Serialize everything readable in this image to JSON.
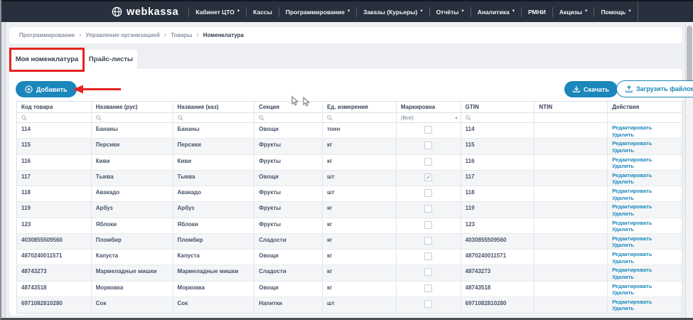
{
  "navbar": {
    "brand": "webkassa",
    "items": [
      {
        "label": "Кабинет ЦТО",
        "dropdown": true
      },
      {
        "label": "Кассы",
        "dropdown": false
      },
      {
        "label": "Программирование",
        "dropdown": true
      },
      {
        "label": "Заказы (Курьеры)",
        "dropdown": true
      },
      {
        "label": "Отчёты",
        "dropdown": true
      },
      {
        "label": "Аналитика",
        "dropdown": true
      },
      {
        "label": "РМНИ",
        "dropdown": false
      },
      {
        "label": "Акцизы",
        "dropdown": true
      },
      {
        "label": "Помощь",
        "dropdown": true
      }
    ]
  },
  "breadcrumb": {
    "items": [
      "Программирование",
      "Управление организацией",
      "Товары",
      "Номенклатура"
    ]
  },
  "tabs": [
    {
      "label": "Моя номенклатура",
      "active": true
    },
    {
      "label": "Прайс-листы",
      "active": false
    }
  ],
  "toolbar": {
    "add_label": "Добавить",
    "download_label": "Скачать",
    "upload_label": "Загрузить файлом"
  },
  "table": {
    "headers": [
      "Код товара",
      "Название (рус)",
      "Название (каз)",
      "Секция",
      "Ед. измерения",
      "Маркировка",
      "GTIN",
      "NTIN",
      "Действия"
    ],
    "filters": {
      "marking_selected": "(Все)"
    },
    "action_labels": {
      "edit": "Редактировать",
      "delete": "Удалить"
    },
    "rows": [
      {
        "code": "114",
        "name_ru": "Бананы",
        "name_kz": "Бананы",
        "section": "Овощи",
        "unit": "тонн",
        "marked": false,
        "gtin": "114",
        "ntin": ""
      },
      {
        "code": "115",
        "name_ru": "Персики",
        "name_kz": "Персики",
        "section": "Фрукты",
        "unit": "кг",
        "marked": false,
        "gtin": "115",
        "ntin": ""
      },
      {
        "code": "116",
        "name_ru": "Киви",
        "name_kz": "Киви",
        "section": "Фрукты",
        "unit": "кг",
        "marked": false,
        "gtin": "116",
        "ntin": ""
      },
      {
        "code": "117",
        "name_ru": "Тыква",
        "name_kz": "Тыква",
        "section": "Овощи",
        "unit": "шт",
        "marked": true,
        "gtin": "117",
        "ntin": ""
      },
      {
        "code": "118",
        "name_ru": "Авакадо",
        "name_kz": "Авакадо",
        "section": "Фрукты",
        "unit": "шт",
        "marked": false,
        "gtin": "118",
        "ntin": ""
      },
      {
        "code": "119",
        "name_ru": "Арбуз",
        "name_kz": "Арбуз",
        "section": "Фрукты",
        "unit": "кг",
        "marked": false,
        "gtin": "119",
        "ntin": ""
      },
      {
        "code": "123",
        "name_ru": "Яблоки",
        "name_kz": "Яблоки",
        "section": "Фрукты",
        "unit": "кг",
        "marked": false,
        "gtin": "123",
        "ntin": ""
      },
      {
        "code": "4030855509560",
        "name_ru": "Пломбир",
        "name_kz": "Пломбир",
        "section": "Сладости",
        "unit": "кг",
        "marked": false,
        "gtin": "4030855509560",
        "ntin": ""
      },
      {
        "code": "4870240011571",
        "name_ru": "Капуста",
        "name_kz": "Капуста",
        "section": "Овощи",
        "unit": "кг",
        "marked": false,
        "gtin": "4870240011571",
        "ntin": ""
      },
      {
        "code": "48743273",
        "name_ru": "Мармеладные мишки",
        "name_kz": "Мармеладные мишки",
        "section": "Сладости",
        "unit": "кг",
        "marked": false,
        "gtin": "48743273",
        "ntin": ""
      },
      {
        "code": "48743518",
        "name_ru": "Морковка",
        "name_kz": "Морковка",
        "section": "Овощи",
        "unit": "кг",
        "marked": false,
        "gtin": "48743518",
        "ntin": ""
      },
      {
        "code": "6971082810280",
        "name_ru": "Сок",
        "name_kz": "Сок",
        "section": "Напитки",
        "unit": "шт",
        "marked": false,
        "gtin": "6971082810280",
        "ntin": ""
      }
    ]
  },
  "colors": {
    "navbar_bg": "#28303e",
    "accent_blue": "#1b87bb",
    "annotation_red": "#e52420",
    "page_bg": "#edeff2",
    "row_alt": "#f3f5f7"
  }
}
